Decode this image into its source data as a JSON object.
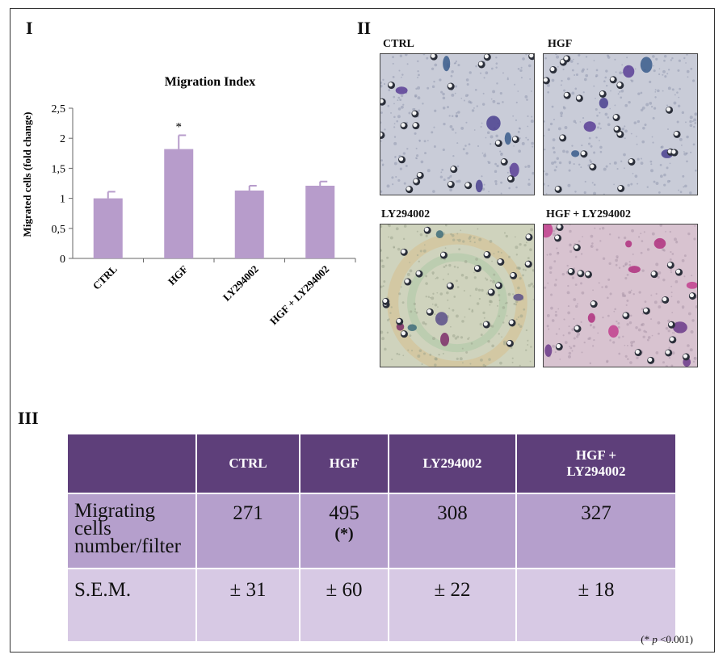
{
  "panels": {
    "p1": "I",
    "p2": "II",
    "p3": "III"
  },
  "chart_data": {
    "type": "bar",
    "title": "Migration Index",
    "xlabel": "",
    "ylabel": "Migrated cells (fold change)",
    "categories": [
      "CTRL",
      "HGF",
      "LY294002",
      "HGF + LY294002"
    ],
    "values": [
      1.0,
      1.82,
      1.13,
      1.21
    ],
    "errors": [
      0.11,
      0.23,
      0.08,
      0.07
    ],
    "significance": [
      "",
      "*",
      "",
      ""
    ],
    "ylim": [
      0,
      2.5
    ],
    "yticks": [
      "0",
      "0,5",
      "1",
      "1,5",
      "2",
      "2,5"
    ],
    "grid": false,
    "bar_color": "#b79ccb"
  },
  "micrographs": [
    {
      "label": "CTRL",
      "style": "blue"
    },
    {
      "label": "HGF",
      "style": "blue"
    },
    {
      "label": "LY294002",
      "style": "green"
    },
    {
      "label": "HGF + LY294002",
      "style": "pink"
    }
  ],
  "table": {
    "headers": [
      "",
      "CTRL",
      "HGF",
      "LY294002",
      "HGF + LY294002"
    ],
    "rows": [
      {
        "label": "Migrating cells number/filter",
        "values": [
          "271",
          "495",
          "308",
          "327"
        ],
        "marks": [
          "",
          "(*)",
          "",
          ""
        ]
      },
      {
        "label": "S.E.M.",
        "values": [
          "± 31",
          "± 60",
          "± 22",
          "± 18"
        ],
        "marks": [
          "",
          "",
          "",
          ""
        ]
      }
    ],
    "header_color": "#5e3f7a",
    "row1_color": "#b59fcc",
    "row2_color": "#d7c9e4"
  },
  "footnote": {
    "pre": "(* ",
    "p": "p",
    "post": " <0.001)"
  }
}
